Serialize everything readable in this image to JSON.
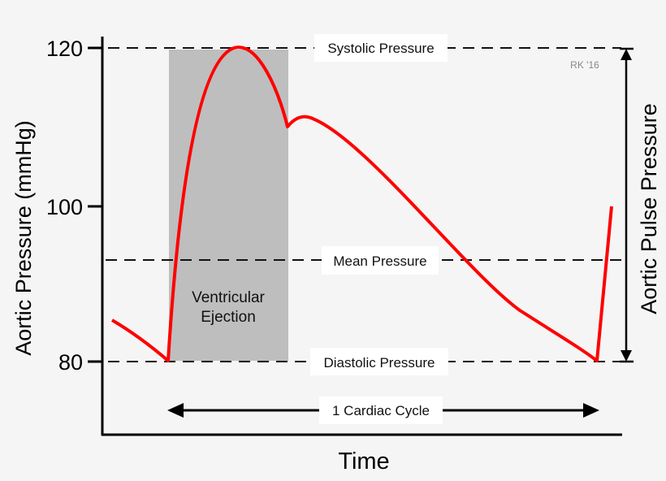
{
  "chart_data": {
    "type": "line",
    "ylabel": "Aortic Pressure (mmHg)",
    "xlabel": "Time",
    "yticks": [
      "80",
      "100",
      "120"
    ],
    "ylim": [
      80,
      120
    ],
    "series_color": "#ff0000",
    "reference_lines": [
      {
        "label": "Systolic Pressure",
        "value": 120
      },
      {
        "label": "Mean Pressure",
        "value": 93.3
      },
      {
        "label": "Diastolic Pressure",
        "value": 80
      }
    ],
    "shaded_region": {
      "label_line1": "Ventricular",
      "label_line2": "Ejection",
      "color": "#bebebe"
    },
    "cycle_label": "1 Cardiac Cycle",
    "pulse_pressure_label": "Aortic Pulse Pressure",
    "signature": "RK '16"
  }
}
